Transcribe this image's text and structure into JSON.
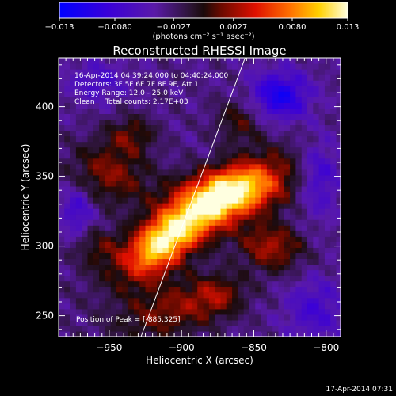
{
  "chart_data": {
    "type": "heatmap",
    "title": "Reconstructed RHESSI Image",
    "xlabel": "Heliocentric X (arcsec)",
    "ylabel": "Heliocentric Y (arcsec)",
    "xlim": [
      -985,
      -790
    ],
    "ylim": [
      235,
      435
    ],
    "x_ticks": [
      -950,
      -900,
      -850,
      -800
    ],
    "y_ticks": [
      250,
      300,
      350,
      400
    ],
    "x_tick_labels": [
      "−950",
      "−900",
      "−850",
      "−800"
    ],
    "y_tick_labels": [
      "250",
      "300",
      "350",
      "400"
    ],
    "colorbar": {
      "range": [
        -0.013,
        0.013
      ],
      "ticks": [
        -0.013,
        -0.008,
        -0.0027,
        0.0027,
        0.008,
        0.013
      ],
      "tick_labels": [
        "−0.013",
        "−0.0080",
        "−0.0027",
        "0.0027",
        "0.0080",
        "0.013"
      ],
      "units": "(photons cm⁻² s⁻¹ asec⁻²)"
    },
    "annotations": {
      "time_range": "16-Apr-2014 04:39:24.000 to 04:40:24.000",
      "detectors": "Detectors: 3F 5F 6F 7F 8F 9F, Att 1",
      "energy_range": "Energy Range: 12.0 - 25.0 keV",
      "method": "Clean",
      "total_counts": "Total counts: 2.17E+03",
      "peak_position": "Position of Peak = [-885,325]"
    },
    "peak": [
      -885,
      325
    ],
    "limb_line": [
      [
        -928,
        235
      ],
      [
        -856,
        435
      ]
    ],
    "grid": false
  },
  "footer": {
    "timestamp": "17-Apr-2014 07:31"
  },
  "colors": {
    "background": "#000000",
    "text": "#ffffff"
  }
}
